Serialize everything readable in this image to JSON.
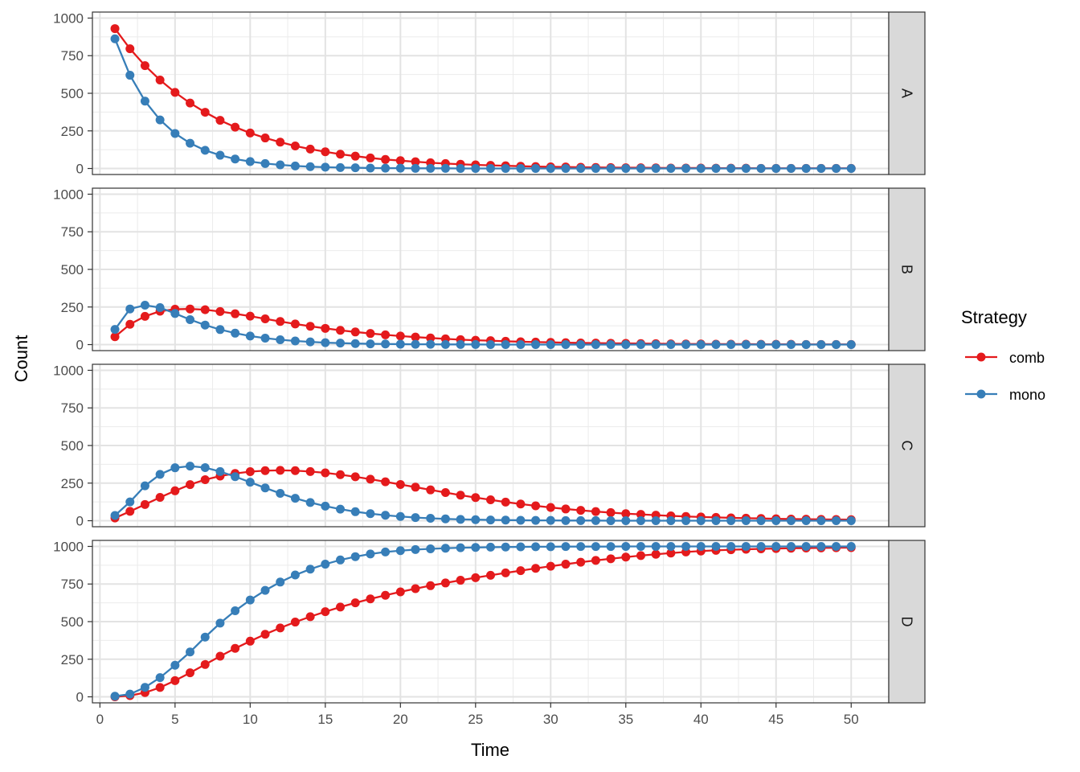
{
  "chart_data": {
    "type": "line",
    "title": "",
    "xlabel": "Time",
    "ylabel": "Count",
    "xlim": [
      -0.5,
      52.5
    ],
    "ylim": [
      -40,
      1040
    ],
    "x_ticks": [
      0,
      5,
      10,
      15,
      20,
      25,
      30,
      35,
      40,
      45,
      50
    ],
    "y_ticks": [
      0,
      250,
      500,
      750,
      1000
    ],
    "legend": {
      "title": "Strategy",
      "position": "right",
      "entries": [
        {
          "name": "comb",
          "color": "#E41A1C"
        },
        {
          "name": "mono",
          "color": "#377EB8"
        }
      ]
    },
    "grid": true,
    "facets": [
      {
        "label": "A",
        "series": [
          {
            "name": "comb",
            "color": "#E41A1C",
            "x": [
              1,
              2,
              3,
              4,
              5,
              6,
              7,
              8,
              9,
              10,
              11,
              12,
              13,
              14,
              15,
              16,
              17,
              18,
              19,
              20,
              21,
              22,
              23,
              24,
              25,
              26,
              27,
              28,
              29,
              30,
              31,
              32,
              33,
              34,
              35,
              36,
              37,
              38,
              39,
              40,
              41,
              42,
              43,
              44,
              45,
              46,
              47,
              48,
              49,
              50
            ],
            "values": [
              930,
              796,
              684,
              588,
              506,
              435,
              374,
              320,
              275,
              236,
              203,
              175,
              150,
              129,
              111,
              95,
              82,
              70,
              60,
              52,
              45,
              38,
              33,
              28,
              24,
              21,
              18,
              15,
              13,
              11,
              10,
              8,
              7,
              6,
              5,
              5,
              4,
              3,
              3,
              3,
              2,
              2,
              2,
              1,
              1,
              1,
              1,
              1,
              1,
              1
            ]
          },
          {
            "name": "mono",
            "color": "#377EB8",
            "x": [
              1,
              2,
              3,
              4,
              5,
              6,
              7,
              8,
              9,
              10,
              11,
              12,
              13,
              14,
              15,
              16,
              17,
              18,
              19,
              20,
              21,
              22,
              23,
              24,
              25,
              26,
              27,
              28,
              29,
              30,
              31,
              32,
              33,
              34,
              35,
              36,
              37,
              38,
              39,
              40,
              41,
              42,
              43,
              44,
              45,
              46,
              47,
              48,
              49,
              50
            ],
            "values": [
              862,
              620,
              448,
              323,
              233,
              168,
              121,
              88,
              63,
              46,
              33,
              24,
              17,
              12,
              9,
              6,
              5,
              3,
              2,
              2,
              1,
              1,
              1,
              0,
              0,
              0,
              0,
              0,
              0,
              0,
              0,
              0,
              0,
              0,
              0,
              0,
              0,
              0,
              0,
              0,
              0,
              0,
              0,
              0,
              0,
              0,
              0,
              0,
              0,
              0
            ]
          }
        ]
      },
      {
        "label": "B",
        "series": [
          {
            "name": "comb",
            "color": "#E41A1C",
            "x": [
              1,
              2,
              3,
              4,
              5,
              6,
              7,
              8,
              9,
              10,
              11,
              12,
              13,
              14,
              15,
              16,
              17,
              18,
              19,
              20,
              21,
              22,
              23,
              24,
              25,
              26,
              27,
              28,
              29,
              30,
              31,
              32,
              33,
              34,
              35,
              36,
              37,
              38,
              39,
              40,
              41,
              42,
              43,
              44,
              45,
              46,
              47,
              48,
              49,
              50
            ],
            "values": [
              52,
              135,
              188,
              222,
              235,
              237,
              232,
              220,
              205,
              189,
              171,
              154,
              137,
              122,
              108,
              95,
              84,
              74,
              65,
              57,
              50,
              44,
              38,
              33,
              29,
              26,
              22,
              19,
              17,
              15,
              13,
              11,
              10,
              9,
              8,
              7,
              6,
              5,
              4,
              4,
              3,
              3,
              3,
              2,
              2,
              2,
              1,
              1,
              1,
              1
            ]
          },
          {
            "name": "mono",
            "color": "#377EB8",
            "x": [
              1,
              2,
              3,
              4,
              5,
              6,
              7,
              8,
              9,
              10,
              11,
              12,
              13,
              14,
              15,
              16,
              17,
              18,
              19,
              20,
              21,
              22,
              23,
              24,
              25,
              26,
              27,
              28,
              29,
              30,
              31,
              32,
              33,
              34,
              35,
              36,
              37,
              38,
              39,
              40,
              41,
              42,
              43,
              44,
              45,
              46,
              47,
              48,
              49,
              50
            ],
            "values": [
              101,
              237,
              262,
              246,
              207,
              166,
              130,
              100,
              76,
              57,
              43,
              32,
              24,
              18,
              13,
              10,
              7,
              5,
              4,
              3,
              2,
              2,
              1,
              1,
              1,
              0,
              0,
              0,
              0,
              0,
              0,
              0,
              0,
              0,
              0,
              0,
              0,
              0,
              0,
              0,
              0,
              0,
              0,
              0,
              0,
              0,
              0,
              0,
              0,
              0
            ]
          }
        ]
      },
      {
        "label": "C",
        "series": [
          {
            "name": "comb",
            "color": "#E41A1C",
            "x": [
              1,
              2,
              3,
              4,
              5,
              6,
              7,
              8,
              9,
              10,
              11,
              12,
              13,
              14,
              15,
              16,
              17,
              18,
              19,
              20,
              21,
              22,
              23,
              24,
              25,
              26,
              27,
              28,
              29,
              30,
              31,
              32,
              33,
              34,
              35,
              36,
              37,
              38,
              39,
              40,
              41,
              42,
              43,
              44,
              45,
              46,
              47,
              48,
              49,
              50
            ],
            "values": [
              18,
              62,
              108,
              155,
              199,
              240,
              273,
              297,
              314,
              326,
              333,
              335,
              333,
              327,
              318,
              306,
              292,
              276,
              259,
              241,
              223,
              205,
              187,
              170,
              154,
              139,
              124,
              111,
              99,
              88,
              78,
              69,
              61,
              54,
              47,
              42,
              37,
              32,
              28,
              25,
              22,
              19,
              17,
              15,
              13,
              11,
              10,
              9,
              8,
              7
            ]
          },
          {
            "name": "mono",
            "color": "#377EB8",
            "x": [
              1,
              2,
              3,
              4,
              5,
              6,
              7,
              8,
              9,
              10,
              11,
              12,
              13,
              14,
              15,
              16,
              17,
              18,
              19,
              20,
              21,
              22,
              23,
              24,
              25,
              26,
              27,
              28,
              29,
              30,
              31,
              32,
              33,
              34,
              35,
              36,
              37,
              38,
              39,
              40,
              41,
              42,
              43,
              44,
              45,
              46,
              47,
              48,
              49,
              50
            ],
            "values": [
              35,
              125,
              232,
              308,
              352,
              363,
              353,
              327,
              293,
              256,
              218,
              182,
              149,
              121,
              97,
              77,
              60,
              47,
              36,
              28,
              21,
              16,
              12,
              9,
              7,
              5,
              4,
              3,
              2,
              2,
              1,
              1,
              1,
              0,
              0,
              0,
              0,
              0,
              0,
              0,
              0,
              0,
              0,
              0,
              0,
              0,
              0,
              0,
              0,
              0
            ]
          }
        ]
      },
      {
        "label": "D",
        "series": [
          {
            "name": "comb",
            "color": "#E41A1C",
            "x": [
              1,
              2,
              3,
              4,
              5,
              6,
              7,
              8,
              9,
              10,
              11,
              12,
              13,
              14,
              15,
              16,
              17,
              18,
              19,
              20,
              21,
              22,
              23,
              24,
              25,
              26,
              27,
              28,
              29,
              30,
              31,
              32,
              33,
              34,
              35,
              36,
              37,
              38,
              39,
              40,
              41,
              42,
              43,
              44,
              45,
              46,
              47,
              48,
              49,
              50
            ],
            "values": [
              0,
              8,
              28,
              62,
              108,
              160,
              215,
              270,
              322,
              370,
              416,
              458,
              497,
              533,
              566,
              597,
              625,
              651,
              675,
              698,
              719,
              739,
              757,
              775,
              792,
              808,
              824,
              839,
              854,
              868,
              882,
              895,
              907,
              918,
              929,
              939,
              948,
              956,
              963,
              969,
              974,
              978,
              981,
              984,
              986,
              988,
              989,
              990,
              991,
              992
            ]
          },
          {
            "name": "mono",
            "color": "#377EB8",
            "x": [
              1,
              2,
              3,
              4,
              5,
              6,
              7,
              8,
              9,
              10,
              11,
              12,
              13,
              14,
              15,
              16,
              17,
              18,
              19,
              20,
              21,
              22,
              23,
              24,
              25,
              26,
              27,
              28,
              29,
              30,
              31,
              32,
              33,
              34,
              35,
              36,
              37,
              38,
              39,
              40,
              41,
              42,
              43,
              44,
              45,
              46,
              47,
              48,
              49,
              50
            ],
            "values": [
              4,
              18,
              63,
              128,
              210,
              298,
              397,
              490,
              572,
              644,
              708,
              763,
              810,
              849,
              882,
              910,
              932,
              950,
              963,
              972,
              979,
              984,
              988,
              991,
              993,
              995,
              996,
              997,
              998,
              998,
              999,
              999,
              999,
              999,
              1000,
              1000,
              1000,
              1000,
              1000,
              1000,
              1000,
              1000,
              1000,
              1000,
              1000,
              1000,
              1000,
              1000,
              1000,
              1000
            ]
          }
        ]
      }
    ]
  }
}
